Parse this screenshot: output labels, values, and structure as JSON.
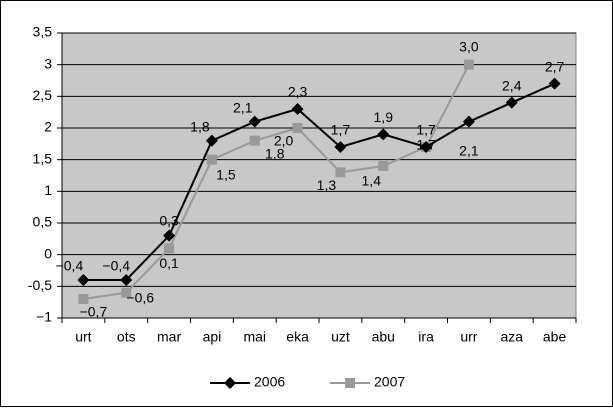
{
  "chart_data": {
    "type": "line",
    "categories": [
      "urt",
      "ots",
      "mar",
      "api",
      "mai",
      "eka",
      "uzt",
      "abu",
      "ira",
      "urr",
      "aza",
      "abe"
    ],
    "series": [
      {
        "name": "2006",
        "color": "#000000",
        "marker": "diamond",
        "values": [
          -0.4,
          -0.4,
          0.3,
          1.8,
          2.1,
          2.3,
          1.7,
          1.9,
          1.7,
          2.1,
          2.4,
          2.7
        ],
        "value_labels": [
          "−0,4",
          "−0,4",
          "0,3",
          "1,8",
          "2,1",
          "2,3",
          "1,7",
          "1,9",
          "1,7",
          "2,1",
          "2,4",
          "2,7"
        ]
      },
      {
        "name": "2007",
        "color": "#999999",
        "marker": "square",
        "values": [
          -0.7,
          -0.6,
          0.1,
          1.5,
          1.8,
          2.0,
          1.3,
          1.4,
          1.7,
          3.0,
          null,
          null
        ],
        "value_labels": [
          "−0,7",
          "−0,6",
          "0,1",
          "1,5",
          "1,8",
          "2,0",
          "1,3",
          "1,4",
          "1,7",
          "3,0",
          null,
          null
        ]
      }
    ],
    "ylim": [
      -1,
      3.5
    ],
    "yticks": [
      {
        "value": -1,
        "label": "−1"
      },
      {
        "value": -0.5,
        "label": "-0,5"
      },
      0,
      {
        "value": 0.5,
        "label": "0,5"
      },
      1,
      {
        "value": 1.5,
        "label": "1,5"
      },
      2,
      {
        "value": 2.5,
        "label": "2,5"
      },
      3,
      {
        "value": 3.5,
        "label": "3,5"
      }
    ],
    "grid": true,
    "legend": "bottom"
  }
}
